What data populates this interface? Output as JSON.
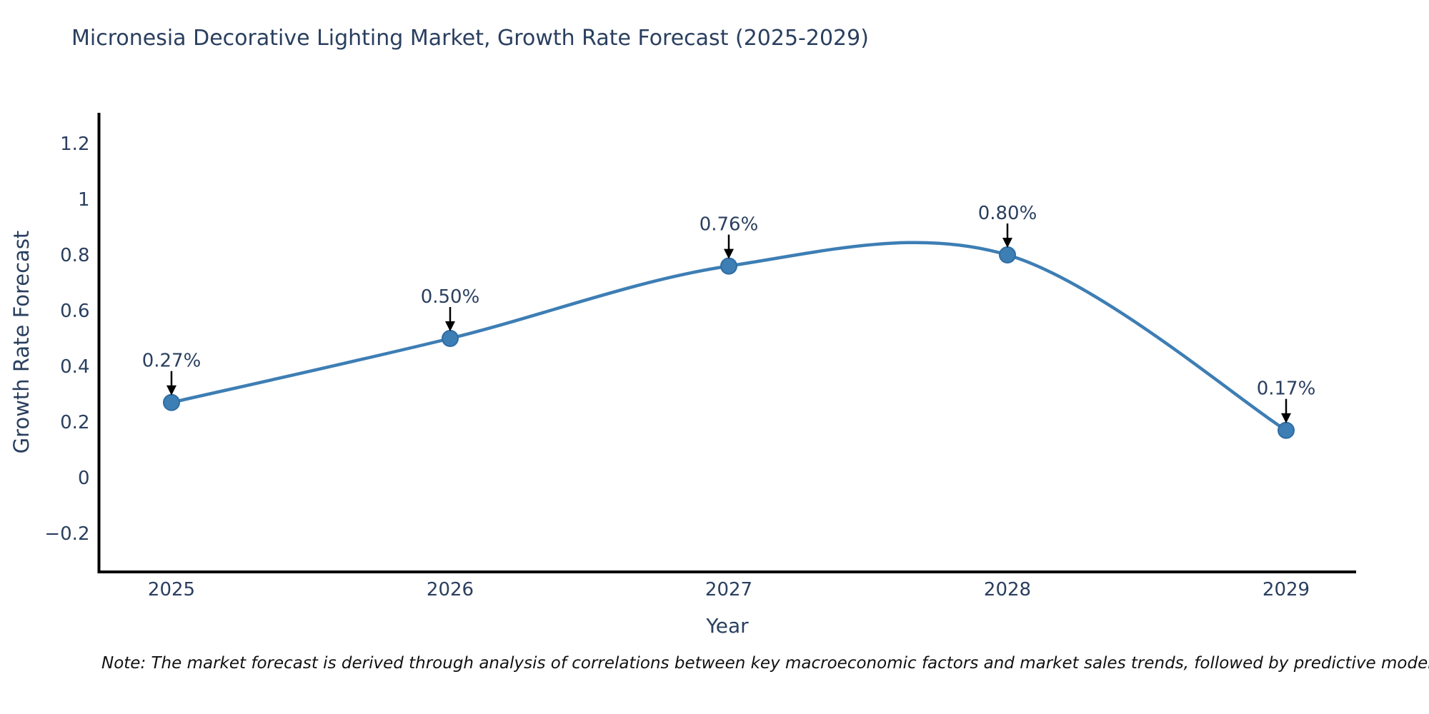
{
  "chart_data": {
    "type": "line",
    "title": "Micronesia Decorative Lighting Market, Growth Rate Forecast (2025-2029)",
    "xlabel": "Year",
    "ylabel": "Growth Rate Forecast",
    "x_categories": [
      "2025",
      "2026",
      "2027",
      "2028",
      "2029"
    ],
    "series": [
      {
        "name": "Growth Rate Forecast",
        "values": [
          0.27,
          0.5,
          0.76,
          0.8,
          0.17
        ]
      }
    ],
    "point_labels": [
      "0.27%",
      "0.50%",
      "0.76%",
      "0.80%",
      "0.17%"
    ],
    "ytick_labels": [
      "1.2",
      "1",
      "0.8",
      "0.6",
      "0.4",
      "0.2",
      "0",
      "−0.2"
    ],
    "ytick_values": [
      1.2,
      1,
      0.8,
      0.6,
      0.4,
      0.2,
      0,
      -0.2
    ],
    "ylim": [
      -0.34,
      1.31
    ],
    "grid": false,
    "legend": "none",
    "line_shape": "spline",
    "marker": "circle",
    "colors": {
      "line": "#3d7eb4",
      "marker": "#3d7eb4",
      "marker_edge": "#2e6da4",
      "axis": "#000000",
      "tick_text": "#2a3f5f",
      "annotation_text": "#2a3f5f",
      "arrow": "#000000",
      "title_text": "#2a3f5f"
    },
    "note": "Note: The market forecast is derived through analysis of correlations between key macroeconomic factors and market sales trends, followed by predictive modeling to project future sa"
  }
}
